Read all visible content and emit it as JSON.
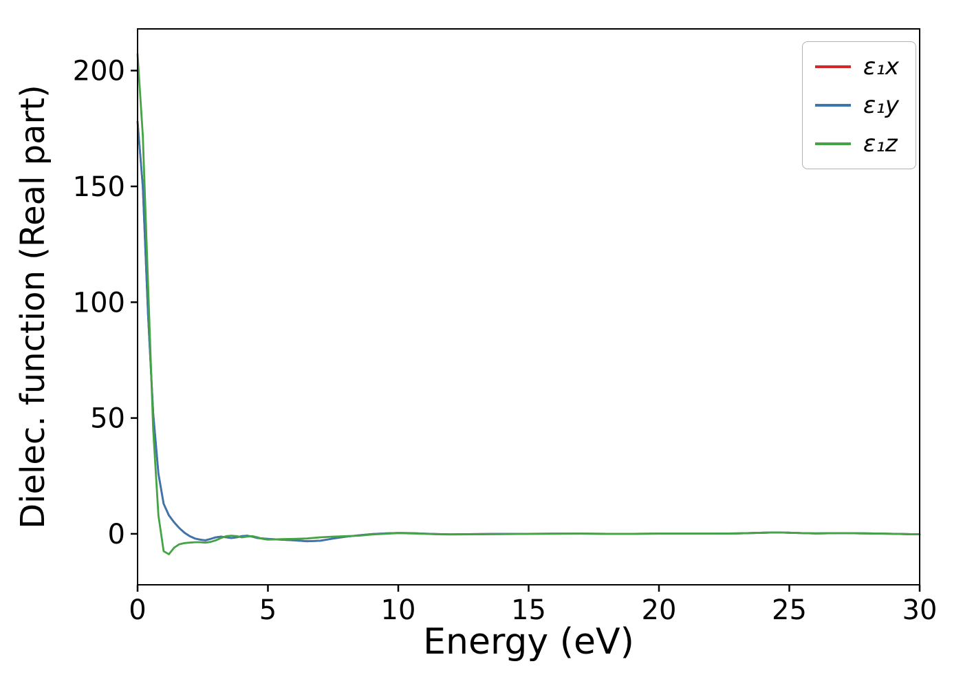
{
  "figure": {
    "background": "#ffffff"
  },
  "chart_data": {
    "type": "line",
    "title": "",
    "xlabel": "Energy (eV)",
    "ylabel": "Dielec. function (Real part)",
    "xlim": [
      0,
      30
    ],
    "ylim": [
      -22,
      218
    ],
    "xticks": [
      0,
      5,
      10,
      15,
      20,
      25,
      30
    ],
    "yticks": [
      0,
      50,
      100,
      150,
      200
    ],
    "grid": false,
    "legend_position": "upper right",
    "x": [
      0,
      0.2,
      0.4,
      0.6,
      0.8,
      1.0,
      1.2,
      1.4,
      1.6,
      1.8,
      2.0,
      2.2,
      2.4,
      2.6,
      2.8,
      3.0,
      3.2,
      3.4,
      3.6,
      3.8,
      4.0,
      4.2,
      4.4,
      4.6,
      4.8,
      5.0,
      5.5,
      6.0,
      6.5,
      7.0,
      7.5,
      8.0,
      8.5,
      9.0,
      9.5,
      10,
      10.5,
      11,
      11.5,
      12,
      13,
      14,
      15,
      16,
      17,
      18,
      19,
      20,
      21,
      22,
      23,
      24,
      24.5,
      25,
      25.5,
      26,
      27,
      28,
      29,
      29.5,
      30
    ],
    "series": [
      {
        "name": "ε₁x",
        "color": "#d62728",
        "values": [
          178,
          150,
          95,
          52,
          26,
          13,
          8,
          5,
          2.5,
          0.5,
          -1,
          -2,
          -2.5,
          -2.8,
          -2.2,
          -1.5,
          -1.2,
          -1.5,
          -1.8,
          -1.5,
          -1,
          -0.8,
          -1.2,
          -1.8,
          -2,
          -2.2,
          -2.5,
          -2.8,
          -3.2,
          -3,
          -2,
          -1.2,
          -0.6,
          -0.1,
          0.2,
          0.4,
          0.3,
          0.1,
          -0.1,
          -0.2,
          -0.1,
          0,
          0,
          0.1,
          0.1,
          0,
          0,
          0.1,
          0.1,
          0.1,
          0.2,
          0.5,
          0.6,
          0.5,
          0.3,
          0.2,
          0.3,
          0.2,
          0,
          -0.1,
          -0.2
        ]
      },
      {
        "name": "ε₁y",
        "color": "#3b76af",
        "values": [
          178,
          150,
          95,
          52,
          26,
          13,
          8,
          5,
          2.5,
          0.5,
          -1,
          -2,
          -2.5,
          -2.8,
          -2.2,
          -1.5,
          -1.2,
          -1.5,
          -1.8,
          -1.5,
          -1,
          -0.8,
          -1.2,
          -1.8,
          -2,
          -2.2,
          -2.5,
          -2.8,
          -3.2,
          -3,
          -2,
          -1.2,
          -0.6,
          -0.1,
          0.2,
          0.4,
          0.3,
          0.1,
          -0.1,
          -0.2,
          -0.1,
          0,
          0,
          0.1,
          0.1,
          0,
          0,
          0.1,
          0.1,
          0.1,
          0.2,
          0.5,
          0.6,
          0.5,
          0.3,
          0.2,
          0.3,
          0.2,
          0,
          -0.1,
          -0.2
        ]
      },
      {
        "name": "ε₁z",
        "color": "#44a344",
        "values": [
          207,
          172,
          108,
          45,
          8,
          -7.5,
          -8.8,
          -6,
          -4.5,
          -4,
          -3.8,
          -3.6,
          -3.6,
          -3.8,
          -3.5,
          -2.8,
          -1.8,
          -1,
          -0.8,
          -1,
          -1.5,
          -1.2,
          -1,
          -1.5,
          -2.2,
          -2.5,
          -2.3,
          -2.2,
          -2,
          -1.5,
          -1.2,
          -1,
          -0.8,
          -0.3,
          0,
          0.3,
          0.2,
          0,
          -0.2,
          -0.3,
          -0.2,
          -0.1,
          0,
          0,
          0.1,
          0,
          0,
          0.1,
          0.1,
          0.1,
          0.2,
          0.5,
          0.6,
          0.5,
          0.3,
          0.2,
          0.3,
          0.2,
          0,
          -0.1,
          -0.2
        ]
      }
    ]
  }
}
